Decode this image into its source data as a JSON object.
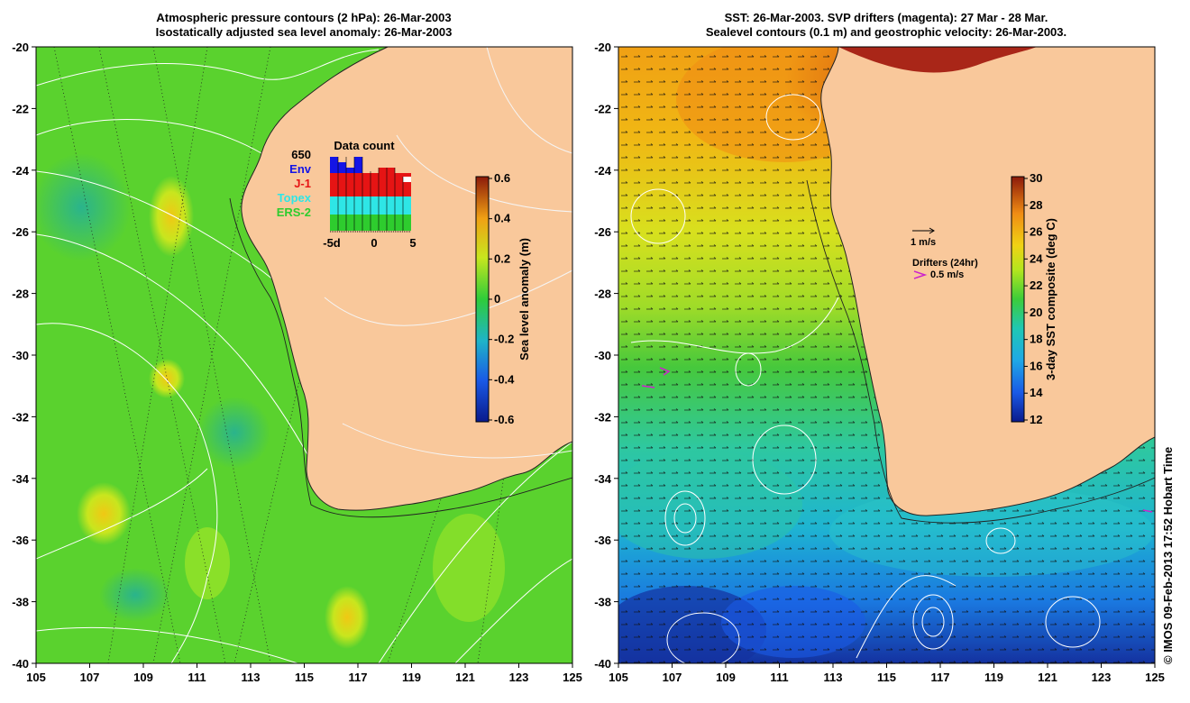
{
  "left": {
    "title_line1": "Atmospheric pressure contours (2 hPa): 26-Mar-2003",
    "title_line2": "Isostatically adjusted sea level anomaly: 26-Mar-2003",
    "colorbar_label": "Sea level anomaly (m)",
    "colorbar_ticks": [
      "0.6",
      "0.4",
      "0.2",
      "0",
      "-0.2",
      "-0.4",
      "-0.6"
    ],
    "colorbar_range": [
      -0.6,
      0.6
    ],
    "inset": {
      "title": "Data count",
      "max_label": "650",
      "legend": [
        {
          "label": "Env",
          "color": "#1414e6"
        },
        {
          "label": "J-1",
          "color": "#e61414"
        },
        {
          "label": "Topex",
          "color": "#2ee6e6"
        },
        {
          "label": "ERS-2",
          "color": "#2ecc2e"
        }
      ],
      "x_ticks": [
        "-5d",
        "0",
        "5"
      ]
    }
  },
  "right": {
    "title_line1": "SST: 26-Mar-2003. SVP drifters (magenta): 27 Mar - 28 Mar.",
    "title_line2": "Sealevel contours (0.1 m) and geostrophic velocity: 26-Mar-2003.",
    "colorbar_label": "3-day SST composite (deg C)",
    "colorbar_ticks": [
      "30",
      "28",
      "26",
      "24",
      "22",
      "20",
      "18",
      "16",
      "14",
      "12"
    ],
    "colorbar_range": [
      12,
      30
    ],
    "scale_label": "1 m/s",
    "drifters_label": "Drifters (24hr)",
    "drifters_speed": "0.5 m/s"
  },
  "axes": {
    "x_ticks": [
      "105",
      "107",
      "109",
      "111",
      "113",
      "115",
      "117",
      "119",
      "121",
      "123",
      "125"
    ],
    "y_ticks": [
      "-20",
      "-22",
      "-24",
      "-26",
      "-28",
      "-30",
      "-32",
      "-34",
      "-36",
      "-38",
      "-40"
    ],
    "lon_range": [
      105,
      125
    ],
    "lat_range": [
      -40,
      -20
    ]
  },
  "credit": "© IMOS 09-Feb-2013 17:52 Hobart Time",
  "colors": {
    "land": "#f9c89b",
    "coast": "#222222"
  }
}
